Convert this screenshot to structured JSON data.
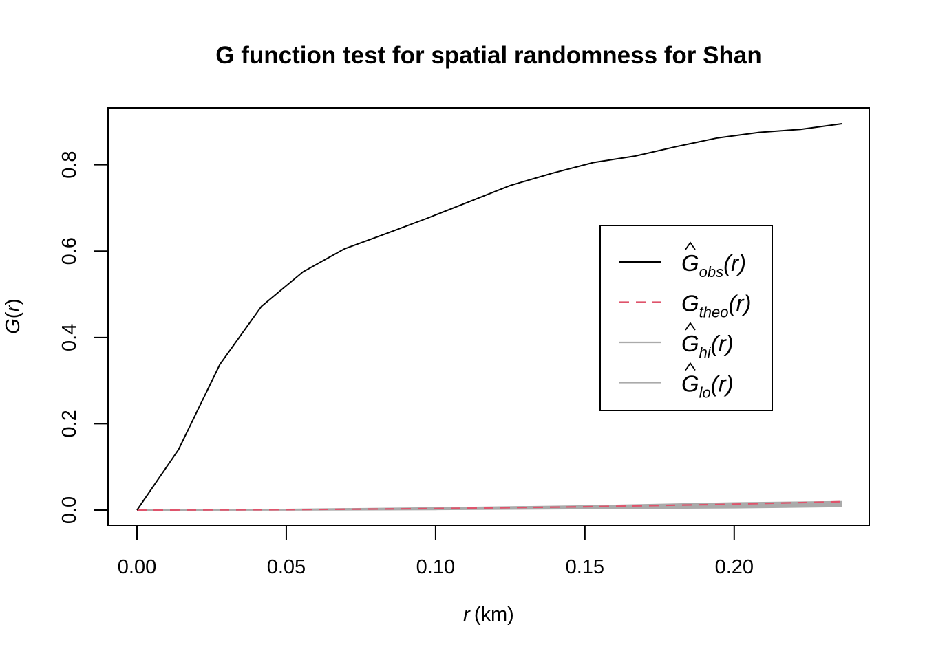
{
  "chart_data": {
    "type": "line",
    "title": "G function test for spatial randomness for Shan",
    "xlabel_var": "r",
    "xlabel_unit": "(km)",
    "ylabel_fn": "G",
    "ylabel_var": "r",
    "xlim": [
      0.0,
      0.236
    ],
    "ylim": [
      0.0,
      0.895
    ],
    "xticks": [
      "0.00",
      "0.05",
      "0.10",
      "0.15",
      "0.20"
    ],
    "xtick_values": [
      0.0,
      0.05,
      0.1,
      0.15,
      0.2
    ],
    "yticks": [
      "0.0",
      "0.2",
      "0.4",
      "0.6",
      "0.8"
    ],
    "ytick_values": [
      0.0,
      0.2,
      0.4,
      0.6,
      0.8
    ],
    "grid": false,
    "legend_position": "right",
    "legend": [
      {
        "key": "obs",
        "sym": "G",
        "hat": true,
        "sub": "obs",
        "arg": "(r)",
        "color": "#000000",
        "dash": ""
      },
      {
        "key": "theo",
        "sym": "G",
        "hat": false,
        "sub": "theo",
        "arg": "(r)",
        "color": "#DF536B",
        "dash": "14,10"
      },
      {
        "key": "hi",
        "sym": "G",
        "hat": true,
        "sub": "hi",
        "arg": "(r)",
        "color": "#AAAAAA",
        "dash": ""
      },
      {
        "key": "lo",
        "sym": "G",
        "hat": true,
        "sub": "lo",
        "arg": "(r)",
        "color": "#AAAAAA",
        "dash": ""
      }
    ],
    "series": [
      {
        "key": "obs",
        "x": [
          0.0,
          0.0139,
          0.0278,
          0.0417,
          0.0556,
          0.0694,
          0.0833,
          0.0972,
          0.1111,
          0.125,
          0.1389,
          0.1528,
          0.1667,
          0.1806,
          0.1944,
          0.2083,
          0.2222,
          0.2361
        ],
        "y": [
          0.0,
          0.14,
          0.338,
          0.472,
          0.552,
          0.605,
          0.64,
          0.676,
          0.714,
          0.752,
          0.78,
          0.805,
          0.82,
          0.842,
          0.862,
          0.875,
          0.882,
          0.895
        ]
      },
      {
        "key": "theo",
        "x": [
          0.0,
          0.05,
          0.1,
          0.15,
          0.2,
          0.236
        ],
        "y": [
          0.0,
          0.0009,
          0.0035,
          0.0078,
          0.0139,
          0.0196
        ]
      },
      {
        "key": "hi",
        "x": [
          0.0,
          0.05,
          0.1,
          0.15,
          0.2,
          0.236
        ],
        "y": [
          0.0,
          0.0015,
          0.005,
          0.0095,
          0.0165,
          0.0195
        ]
      },
      {
        "key": "lo",
        "x": [
          0.0,
          0.05,
          0.1,
          0.15,
          0.2,
          0.236
        ],
        "y": [
          0.0,
          0.0003,
          0.0015,
          0.0035,
          0.0055,
          0.0085
        ]
      }
    ]
  }
}
